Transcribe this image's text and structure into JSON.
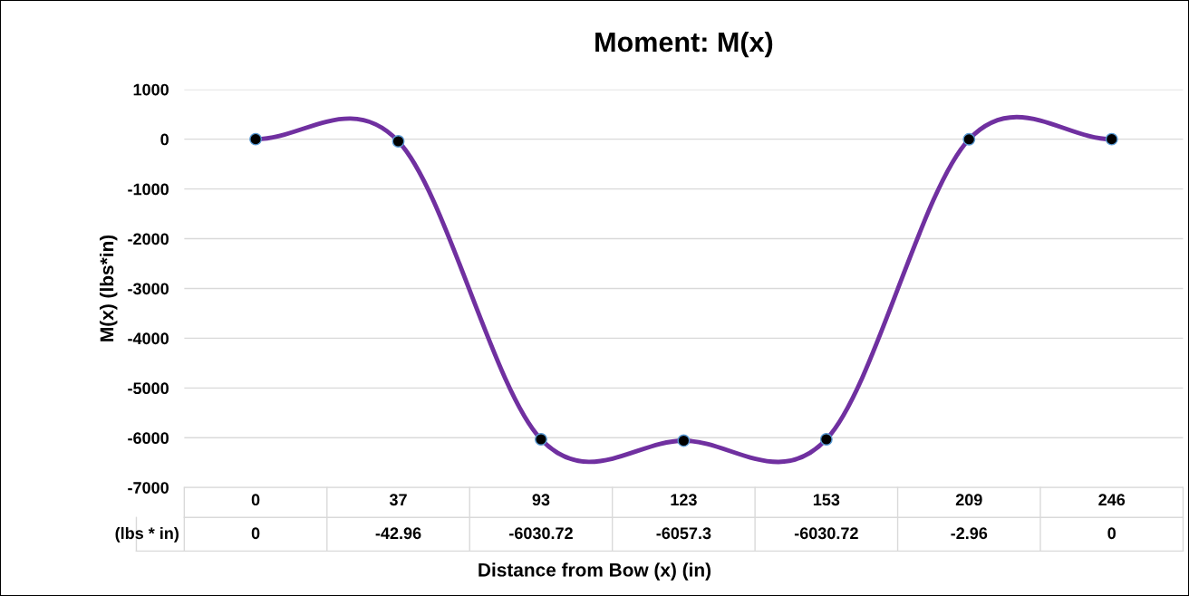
{
  "chart_data": {
    "type": "line",
    "title": "Moment: M(x)",
    "xlabel": "Distance from Bow (x) (in)",
    "ylabel": "M(x) (lbs*in)",
    "categories": [
      "0",
      "37",
      "93",
      "123",
      "153",
      "209",
      "246"
    ],
    "series": [
      {
        "name": "(lbs * in)",
        "color": "#7030a0",
        "values": [
          0,
          -42.96,
          -6030.72,
          -6057.3,
          -6030.72,
          -2.96,
          0
        ]
      }
    ],
    "ylim": [
      -7000,
      1000
    ],
    "yticks": [
      -7000,
      -6000,
      -5000,
      -4000,
      -3000,
      -2000,
      -1000,
      0,
      1000
    ],
    "grid": "y",
    "marker": "circle",
    "line_style": "solid",
    "data_labels": true,
    "legend": false
  }
}
